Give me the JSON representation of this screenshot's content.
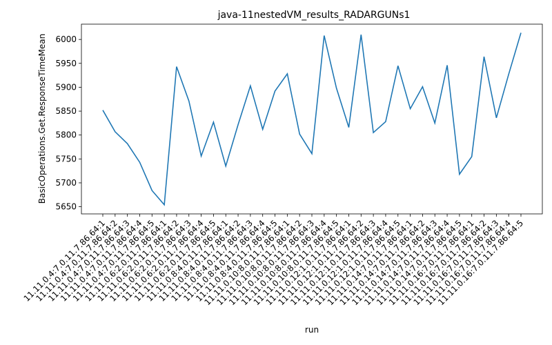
{
  "chart_data": {
    "type": "line",
    "title": "java-11nestedVM_results_RADARGUNs1",
    "xlabel": "run",
    "ylabel": "BasicOperations.Get.ResponseTimeMean",
    "ylim": [
      5635,
      6032
    ],
    "yticks": [
      5650,
      5700,
      5750,
      5800,
      5850,
      5900,
      5950,
      6000
    ],
    "grid": false,
    "line_color": "#1f77b4",
    "categories": [
      "11.11.0.4:7.0.11.7.86.64:1",
      "11.11.0.4:7.0.11.7.86.64:2",
      "11.11.0.4:7.0.11.7.86.64:3",
      "11.11.0.4:7.0.11.7.86.64:4",
      "11.11.0.4:7.0.11.7.86.64:5",
      "11.11.0.6:2.0.11.7.86.64:1",
      "11.11.0.6:2.0.11.7.86.64:2",
      "11.11.0.6:2.0.11.7.86.64:3",
      "11.11.0.6:2.0.11.7.86.64:4",
      "11.11.0.6:2.0.11.7.86.64:5",
      "11.11.0.8:4.0.11.7.86.64:1",
      "11.11.0.8:4.0.11.7.86.64:2",
      "11.11.0.8:4.0.11.7.86.64:3",
      "11.11.0.8:4.0.11.7.86.64:4",
      "11.11.0.8:4.0.11.7.86.64:5",
      "11.11.0.10:8.0.11.7.86.64:1",
      "11.11.0.10:8.0.11.7.86.64:2",
      "11.11.0.10:8.0.11.7.86.64:3",
      "11.11.0.10:8.0.11.7.86.64:4",
      "11.11.0.10:8.0.11.7.86.64:5",
      "11.11.0.12:1.0.11.7.86.64:1",
      "11.11.0.12:1.0.11.7.86.64:2",
      "11.11.0.12:1.0.11.7.86.64:3",
      "11.11.0.12:1.0.11.7.86.64:4",
      "11.11.0.12:1.0.11.7.86.64:5",
      "11.11.0.14:7.0.11.7.86.64:1",
      "11.11.0.14:7.0.11.7.86.64:2",
      "11.11.0.14:7.0.11.7.86.64:3",
      "11.11.0.14:7.0.11.7.86.64:4",
      "11.11.0.14:7.0.11.7.86.64:5",
      "11.11.0.16:7.0.11.7.86.64:1",
      "11.11.0.16:7.0.11.7.86.64:2",
      "11.11.0.16:7.0.11.7.86.64:3",
      "11.11.0.16:7.0.11.7.86.64:4",
      "11.11.0.16:7.0.11.7.86.64:5"
    ],
    "values": [
      5852,
      5807,
      5782,
      5743,
      5684,
      5654,
      5943,
      5871,
      5756,
      5827,
      5735,
      5822,
      5903,
      5812,
      5892,
      5928,
      5802,
      5761,
      6008,
      5898,
      5816,
      6010,
      5805,
      5828,
      5945,
      5855,
      5901,
      5825,
      5946,
      5718,
      5755,
      5964,
      5836,
      5927,
      6014
    ]
  }
}
